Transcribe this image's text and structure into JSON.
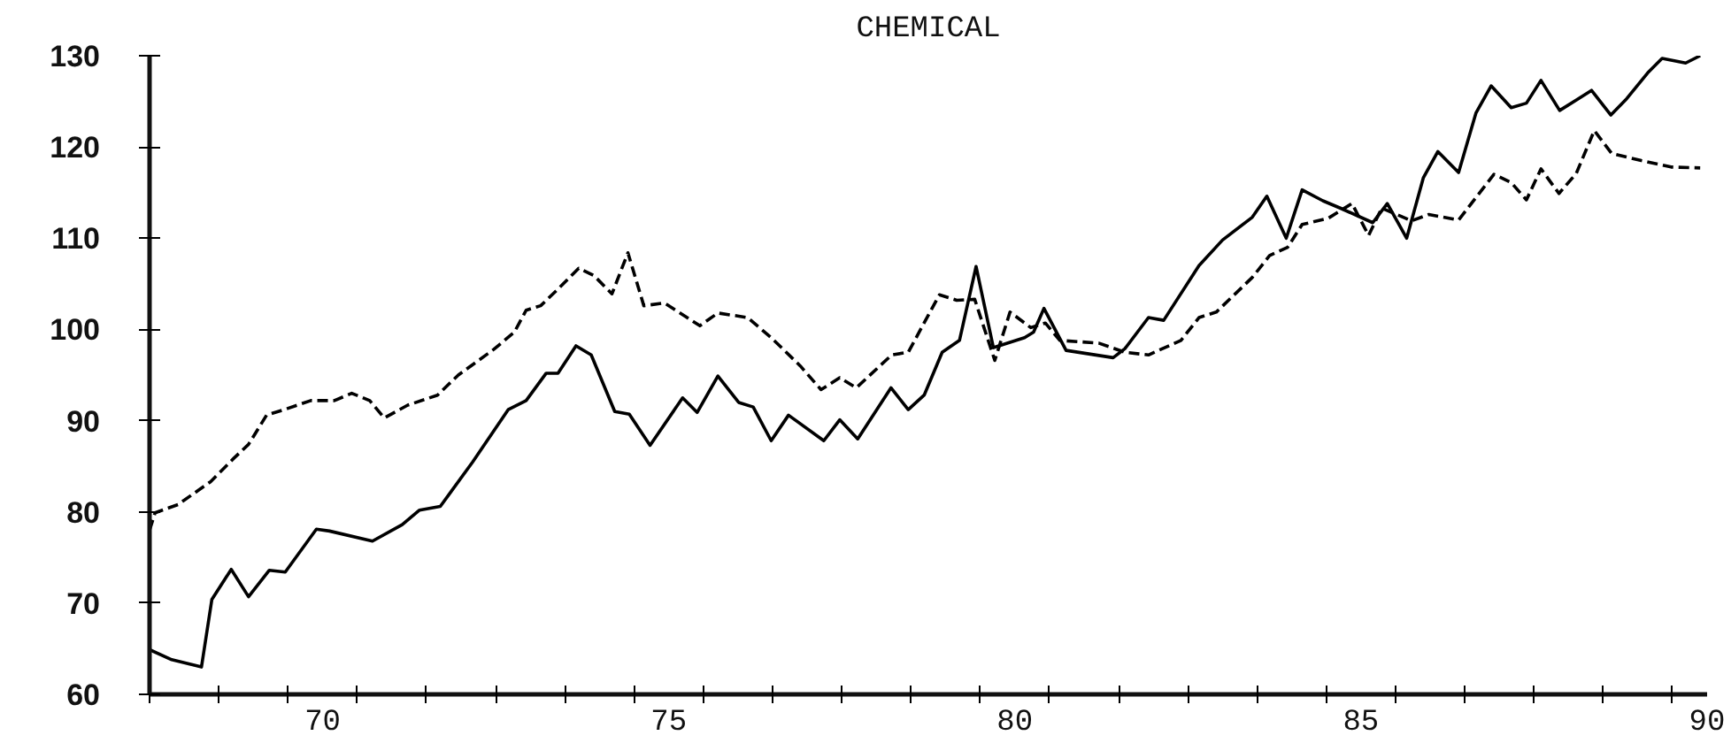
{
  "chart_data": {
    "type": "line",
    "title": "CHEMICAL",
    "xlim": [
      68,
      90.5
    ],
    "ylim": [
      60,
      130
    ],
    "xticks": [
      {
        "value": 68,
        "label": null
      },
      {
        "value": 69,
        "label": null
      },
      {
        "value": 70,
        "label": null
      },
      {
        "value": 70.5,
        "label": "70"
      },
      {
        "value": 71,
        "label": null
      },
      {
        "value": 72,
        "label": null
      },
      {
        "value": 73,
        "label": null
      },
      {
        "value": 74,
        "label": null
      },
      {
        "value": 75,
        "label": null
      },
      {
        "value": 75.5,
        "label": "75"
      },
      {
        "value": 76,
        "label": null
      },
      {
        "value": 77,
        "label": null
      },
      {
        "value": 78,
        "label": null
      },
      {
        "value": 79,
        "label": null
      },
      {
        "value": 80,
        "label": null
      },
      {
        "value": 80.5,
        "label": "80"
      },
      {
        "value": 81,
        "label": null
      },
      {
        "value": 82,
        "label": null
      },
      {
        "value": 83,
        "label": null
      },
      {
        "value": 84,
        "label": null
      },
      {
        "value": 85,
        "label": null
      },
      {
        "value": 85.5,
        "label": "85"
      },
      {
        "value": 86,
        "label": null
      },
      {
        "value": 87,
        "label": null
      },
      {
        "value": 88,
        "label": null
      },
      {
        "value": 89,
        "label": null
      },
      {
        "value": 90,
        "label": null
      },
      {
        "value": 90.5,
        "label": "90"
      }
    ],
    "yticks": [
      60,
      70,
      80,
      90,
      100,
      110,
      120,
      130
    ],
    "grid": false,
    "marker": "none",
    "series": [
      {
        "color": "#000000",
        "line_style": "solid",
        "x": [
          68,
          68.32,
          68.75,
          68.9,
          69.18,
          69.43,
          69.73,
          69.96,
          70.41,
          70.6,
          71.22,
          71.65,
          71.9,
          72.2,
          72.67,
          73.18,
          73.44,
          73.73,
          73.9,
          74.16,
          74.38,
          74.72,
          74.93,
          75.23,
          75.7,
          75.91,
          76.21,
          76.51,
          76.72,
          76.98,
          77.23,
          77.74,
          77.97,
          78.23,
          78.71,
          78.96,
          79.19,
          79.45,
          79.7,
          79.94,
          80.19,
          80.64,
          80.77,
          80.92,
          81.24,
          81.92,
          82.09,
          82.43,
          82.65,
          83.16,
          83.5,
          83.93,
          84.14,
          84.42,
          84.65,
          84.95,
          85.2,
          85.67,
          85.88,
          86.16,
          86.4,
          86.61,
          86.91,
          87.16,
          87.38,
          87.67,
          87.89,
          88.1,
          88.37,
          88.83,
          89.11,
          89.34,
          89.64,
          89.85,
          90.19,
          90.4
        ],
        "values": [
          64.9,
          63.8,
          63.0,
          70.4,
          73.7,
          70.7,
          73.6,
          73.4,
          78.1,
          77.9,
          76.8,
          78.6,
          80.2,
          80.6,
          85.5,
          91.2,
          92.2,
          95.2,
          95.2,
          98.2,
          97.2,
          91.0,
          90.7,
          87.3,
          92.5,
          90.9,
          94.9,
          92.0,
          91.5,
          87.8,
          90.6,
          87.8,
          90.1,
          88.0,
          93.6,
          91.2,
          92.8,
          97.5,
          98.8,
          106.9,
          98.0,
          99.1,
          99.7,
          102.3,
          97.7,
          96.9,
          97.9,
          101.3,
          101.0,
          107.0,
          109.8,
          112.3,
          114.6,
          110.0,
          115.3,
          114.1,
          113.3,
          111.7,
          113.8,
          110.0,
          116.6,
          119.5,
          117.2,
          123.7,
          126.7,
          124.3,
          124.8,
          127.3,
          124.0,
          126.2,
          123.5,
          125.3,
          128.1,
          129.7,
          129.2,
          130.0
        ]
      },
      {
        "color": "#000000",
        "line_style": "dashed",
        "x": [
          68,
          68.08,
          68.41,
          68.88,
          69.22,
          69.43,
          69.69,
          69.94,
          70.33,
          70.67,
          70.92,
          71.18,
          71.39,
          71.73,
          72.16,
          72.46,
          72.97,
          73.27,
          73.44,
          73.65,
          73.91,
          74.2,
          74.42,
          74.68,
          74.91,
          75.14,
          75.44,
          75.95,
          76.21,
          76.64,
          76.98,
          77.4,
          77.7,
          77.97,
          78.21,
          78.72,
          78.96,
          79.41,
          79.66,
          79.92,
          80.21,
          80.43,
          80.73,
          80.94,
          81.15,
          81.71,
          82.09,
          82.43,
          82.9,
          83.16,
          83.41,
          83.93,
          84.18,
          84.44,
          84.65,
          85.03,
          85.37,
          85.61,
          85.8,
          86.23,
          86.48,
          86.91,
          87.42,
          87.67,
          87.89,
          88.1,
          88.36,
          88.61,
          88.87,
          89.12,
          89.55,
          89.98,
          90.4
        ],
        "values": [
          78.0,
          79.9,
          80.8,
          83.3,
          85.9,
          87.4,
          90.6,
          91.2,
          92.2,
          92.2,
          93.0,
          92.2,
          90.3,
          91.7,
          92.8,
          95.0,
          97.8,
          99.7,
          102.1,
          102.6,
          104.5,
          106.7,
          105.9,
          103.9,
          108.4,
          102.6,
          102.9,
          100.4,
          101.8,
          101.3,
          99.1,
          96.0,
          93.4,
          94.7,
          93.6,
          97.2,
          97.5,
          103.8,
          103.2,
          103.3,
          96.6,
          101.9,
          100.2,
          100.7,
          98.8,
          98.5,
          97.5,
          97.2,
          98.8,
          101.3,
          101.9,
          105.7,
          108.1,
          109.0,
          111.5,
          112.2,
          113.8,
          110.3,
          113.3,
          111.9,
          112.6,
          112.0,
          117.0,
          116.1,
          114.2,
          117.6,
          114.9,
          117.1,
          121.8,
          119.3,
          118.5,
          117.8,
          117.7
        ]
      }
    ]
  }
}
